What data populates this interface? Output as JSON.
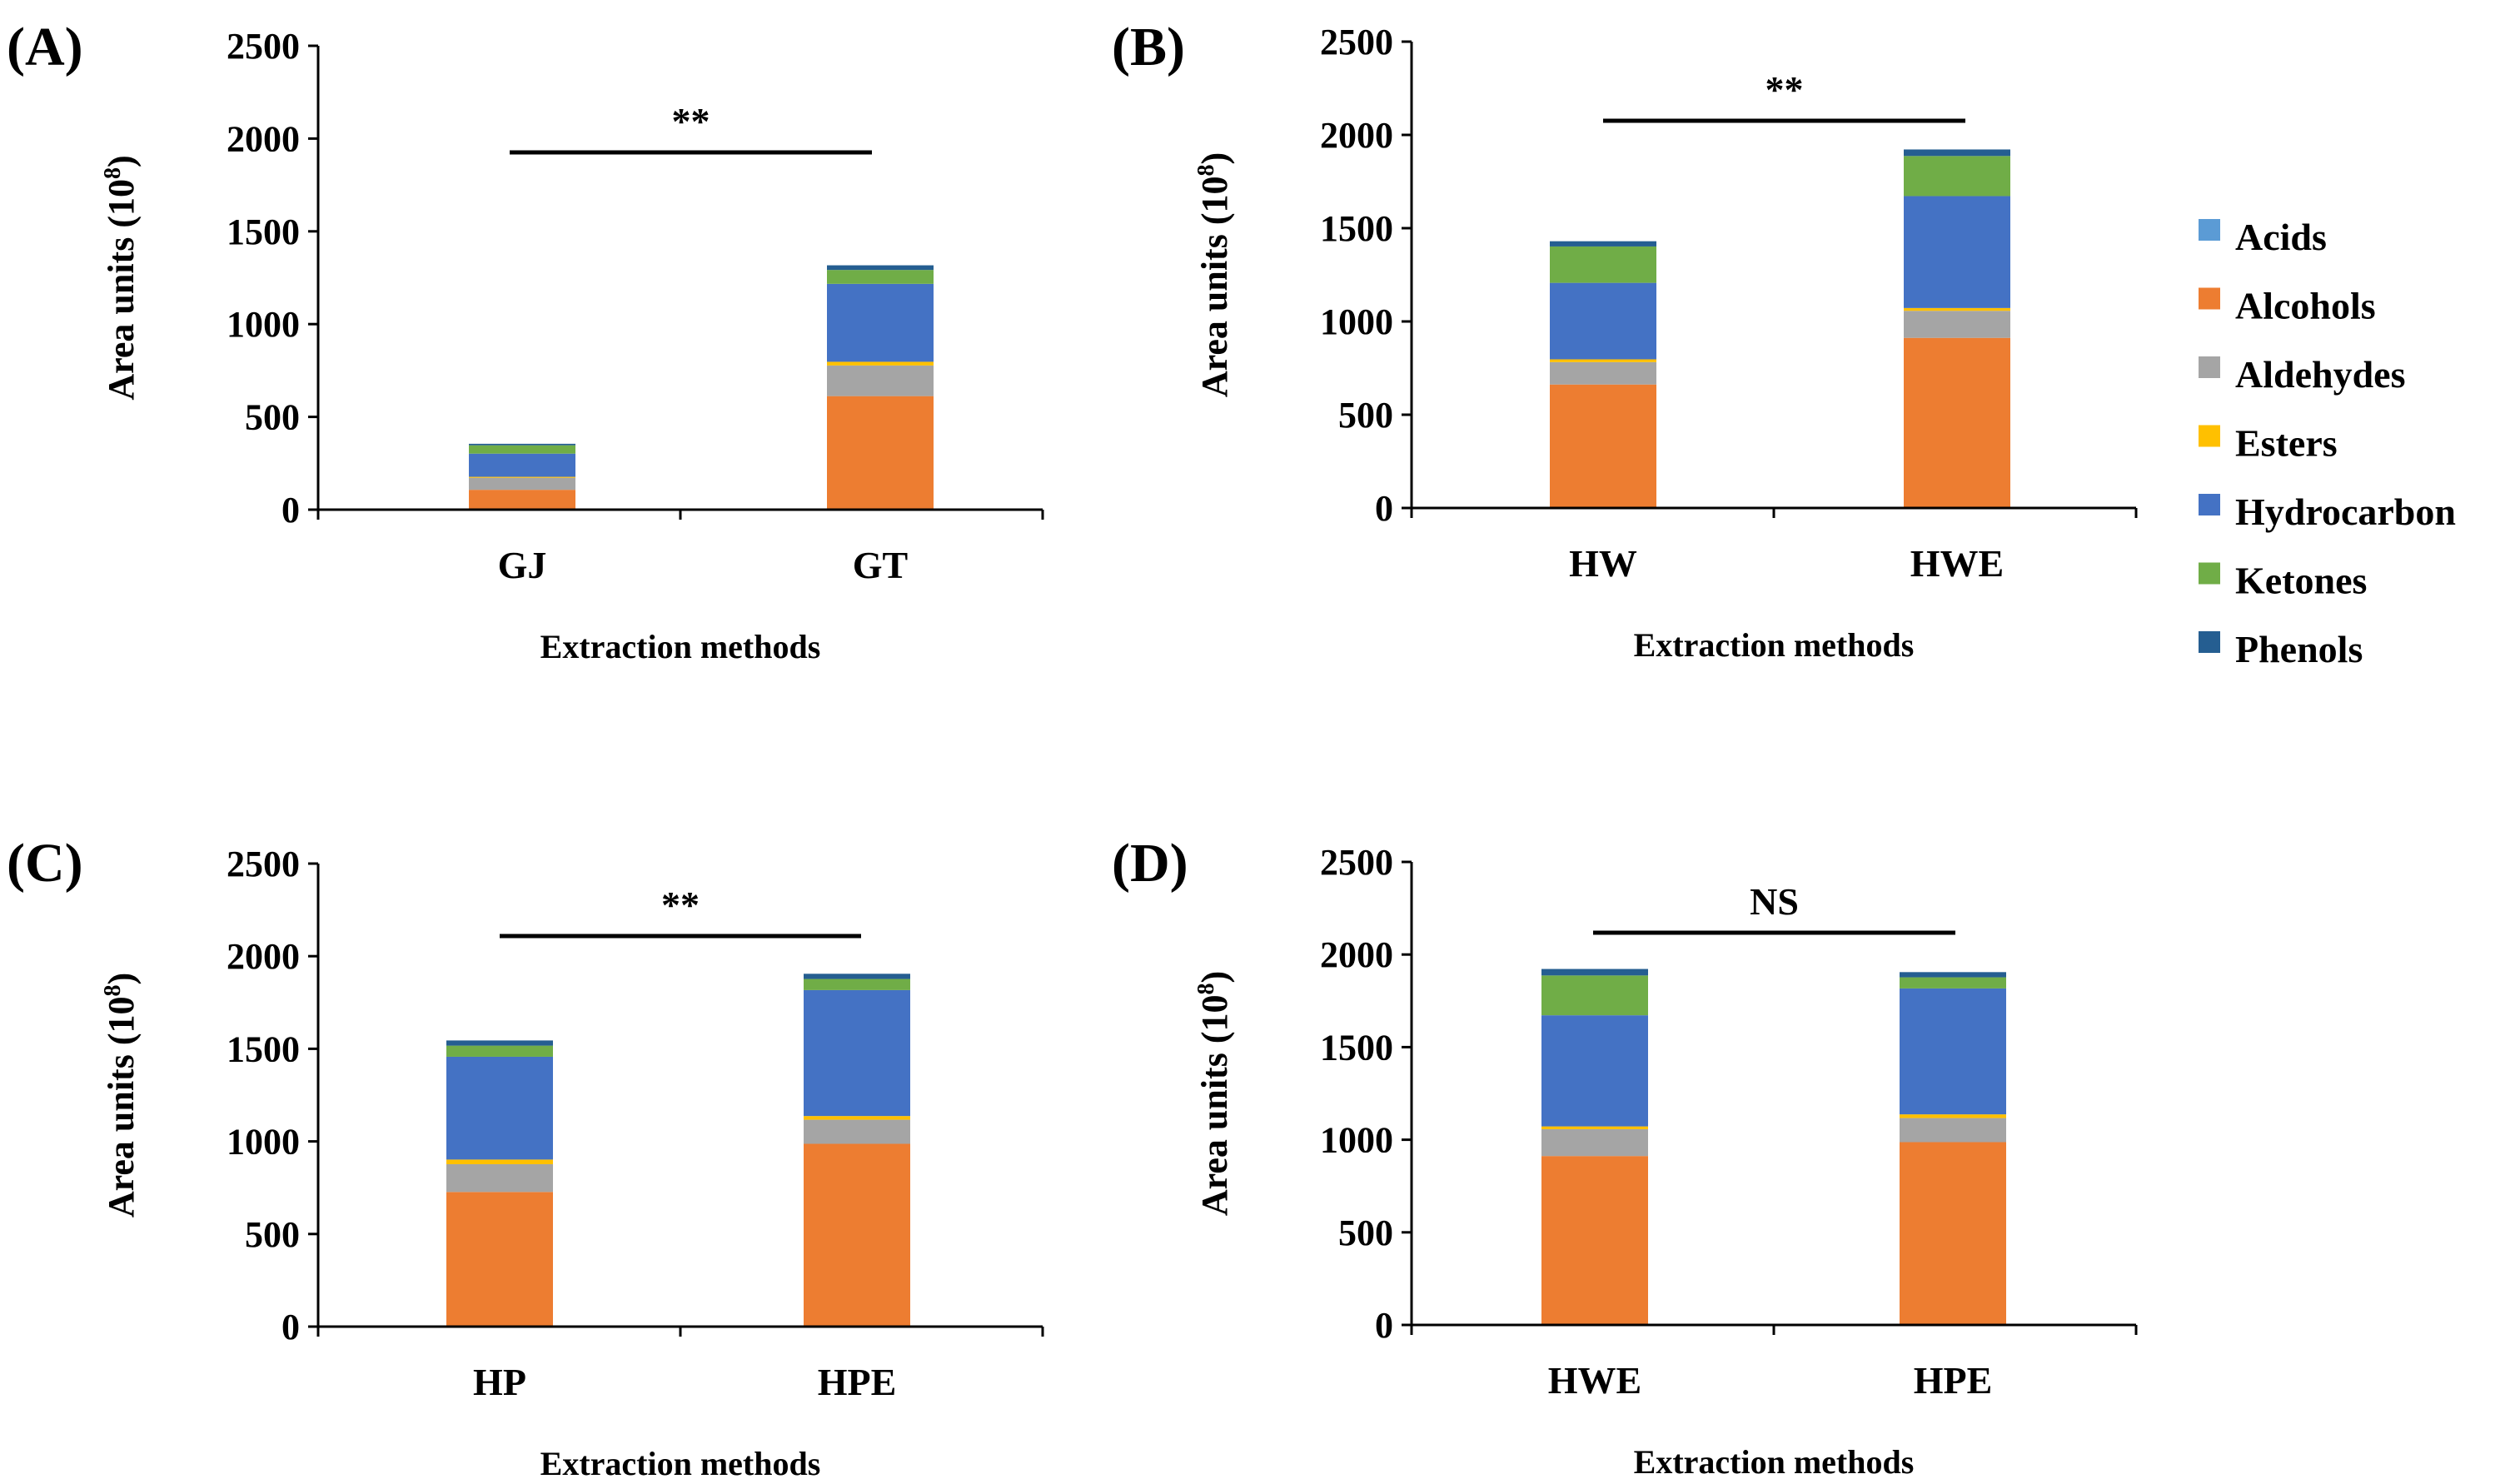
{
  "figure": {
    "legend": [
      {
        "name": "Acids",
        "color": "#5B9BD5"
      },
      {
        "name": "Alcohols",
        "color": "#ED7D31"
      },
      {
        "name": "Aldehydes",
        "color": "#A5A5A5"
      },
      {
        "name": "Esters",
        "color": "#FFC000"
      },
      {
        "name": "Hydrocarbon",
        "color": "#4472C4"
      },
      {
        "name": "Ketones",
        "color": "#70AD47"
      },
      {
        "name": "Phenols",
        "color": "#255E91"
      }
    ]
  },
  "chart_data": [
    {
      "type": "bar",
      "stacked": true,
      "panel_label": "(A)",
      "title": "",
      "xlabel": "Extraction methods",
      "ylabel": "Area units (10",
      "ylabel_sup": "8",
      "ylabel_close": ")",
      "ylim": [
        0,
        2500
      ],
      "yticks": [
        "0",
        "500",
        "1000",
        "1500",
        "2000",
        "2500"
      ],
      "categories": [
        "GJ",
        "GT"
      ],
      "significance": "**",
      "series": [
        {
          "name": "Acids",
          "values": [
            2,
            2
          ]
        },
        {
          "name": "Alcohols",
          "values": [
            105,
            610
          ]
        },
        {
          "name": "Aldehydes",
          "values": [
            65,
            165
          ]
        },
        {
          "name": "Esters",
          "values": [
            5,
            20
          ]
        },
        {
          "name": "Hydrocarbon",
          "values": [
            125,
            420
          ]
        },
        {
          "name": "Ketones",
          "values": [
            45,
            75
          ]
        },
        {
          "name": "Phenols",
          "values": [
            8,
            25
          ]
        }
      ]
    },
    {
      "type": "bar",
      "stacked": true,
      "panel_label": "(B)",
      "title": "",
      "xlabel": "Extraction methods",
      "ylabel": "Area units (10",
      "ylabel_sup": "8",
      "ylabel_close": ")",
      "ylim": [
        0,
        2500
      ],
      "yticks": [
        "0",
        "500",
        "1000",
        "1500",
        "2000",
        "2500"
      ],
      "categories": [
        "HW",
        "HWE"
      ],
      "significance": "**",
      "series": [
        {
          "name": "Acids",
          "values": [
            2,
            2
          ]
        },
        {
          "name": "Alcohols",
          "values": [
            660,
            910
          ]
        },
        {
          "name": "Aldehydes",
          "values": [
            120,
            145
          ]
        },
        {
          "name": "Esters",
          "values": [
            15,
            15
          ]
        },
        {
          "name": "Hydrocarbon",
          "values": [
            410,
            600
          ]
        },
        {
          "name": "Ketones",
          "values": [
            195,
            215
          ]
        },
        {
          "name": "Phenols",
          "values": [
            28,
            35
          ]
        }
      ]
    },
    {
      "type": "bar",
      "stacked": true,
      "panel_label": "(C)",
      "title": "",
      "xlabel": "Extraction methods",
      "ylabel": "Area units (10",
      "ylabel_sup": "8",
      "ylabel_close": ")",
      "ylim": [
        0,
        2500
      ],
      "yticks": [
        "0",
        "500",
        "1000",
        "1500",
        "2000",
        "2500"
      ],
      "categories": [
        "HP",
        "HPE"
      ],
      "significance": "**",
      "series": [
        {
          "name": "Acids",
          "values": [
            2,
            2
          ]
        },
        {
          "name": "Alcohols",
          "values": [
            725,
            985
          ]
        },
        {
          "name": "Aldehydes",
          "values": [
            150,
            130
          ]
        },
        {
          "name": "Esters",
          "values": [
            25,
            20
          ]
        },
        {
          "name": "Hydrocarbon",
          "values": [
            555,
            680
          ]
        },
        {
          "name": "Ketones",
          "values": [
            60,
            60
          ]
        },
        {
          "name": "Phenols",
          "values": [
            28,
            28
          ]
        }
      ]
    },
    {
      "type": "bar",
      "stacked": true,
      "panel_label": "(D)",
      "title": "",
      "xlabel": "Extraction methods",
      "ylabel": "Area units (10",
      "ylabel_sup": "8",
      "ylabel_close": ")",
      "ylim": [
        0,
        2500
      ],
      "yticks": [
        "0",
        "500",
        "1000",
        "1500",
        "2000",
        "2500"
      ],
      "categories": [
        "HWE",
        "HPE"
      ],
      "significance": "NS",
      "series": [
        {
          "name": "Acids",
          "values": [
            2,
            2
          ]
        },
        {
          "name": "Alcohols",
          "values": [
            910,
            985
          ]
        },
        {
          "name": "Aldehydes",
          "values": [
            145,
            130
          ]
        },
        {
          "name": "Esters",
          "values": [
            15,
            20
          ]
        },
        {
          "name": "Hydrocarbon",
          "values": [
            600,
            680
          ]
        },
        {
          "name": "Ketones",
          "values": [
            215,
            60
          ]
        },
        {
          "name": "Phenols",
          "values": [
            35,
            28
          ]
        }
      ]
    }
  ]
}
